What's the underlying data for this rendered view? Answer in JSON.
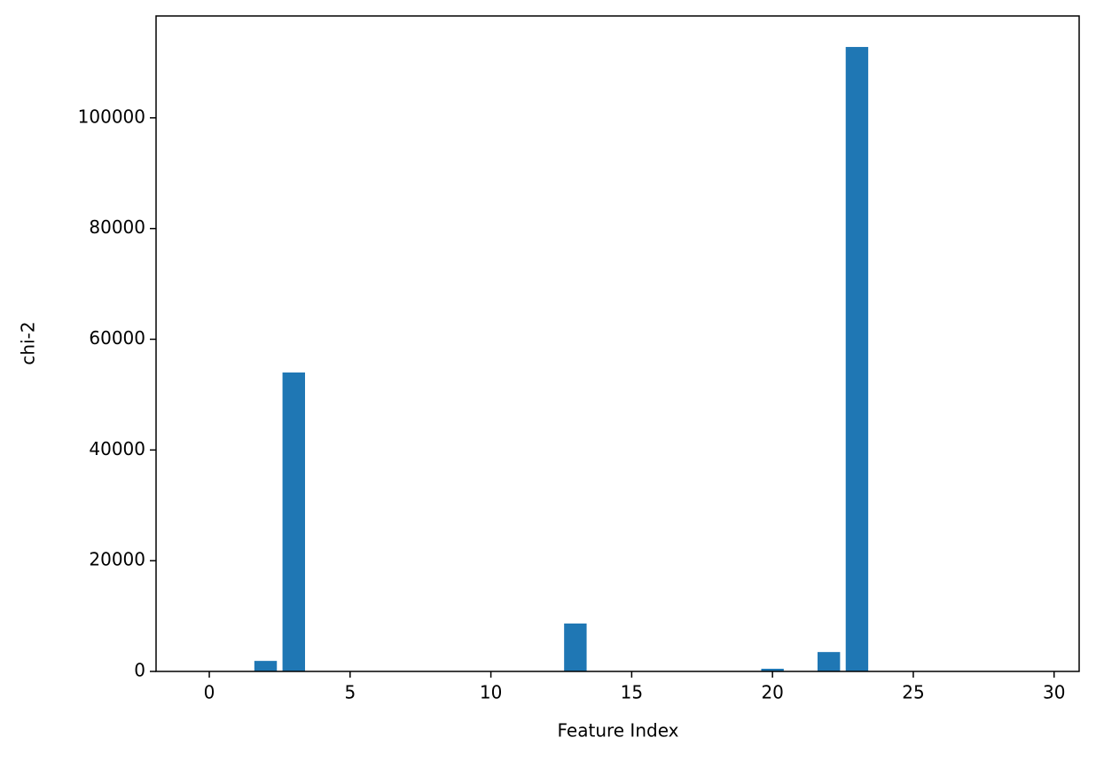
{
  "chart_data": {
    "type": "bar",
    "x_label": "Feature Index",
    "y_label": "chi-2",
    "x": [
      0,
      1,
      2,
      3,
      4,
      5,
      6,
      7,
      8,
      9,
      10,
      11,
      12,
      13,
      14,
      15,
      16,
      17,
      18,
      19,
      20,
      21,
      22,
      23,
      24,
      25,
      26,
      27,
      28,
      29
    ],
    "values": [
      0,
      0,
      1900,
      54000,
      0,
      0,
      0,
      0,
      0,
      0,
      0,
      0,
      0,
      8650,
      0,
      0,
      0,
      0,
      0,
      0,
      480,
      0,
      3500,
      112800,
      0,
      0,
      0,
      0,
      0,
      0
    ],
    "color": "#1f77b4",
    "xlim": [
      -1.89,
      30.89
    ],
    "xticks": [
      0,
      5,
      10,
      15,
      20,
      25,
      30
    ],
    "ylim": [
      0,
      118400
    ],
    "yticks": [
      0,
      20000,
      40000,
      60000,
      80000,
      100000
    ],
    "grid": false
  }
}
